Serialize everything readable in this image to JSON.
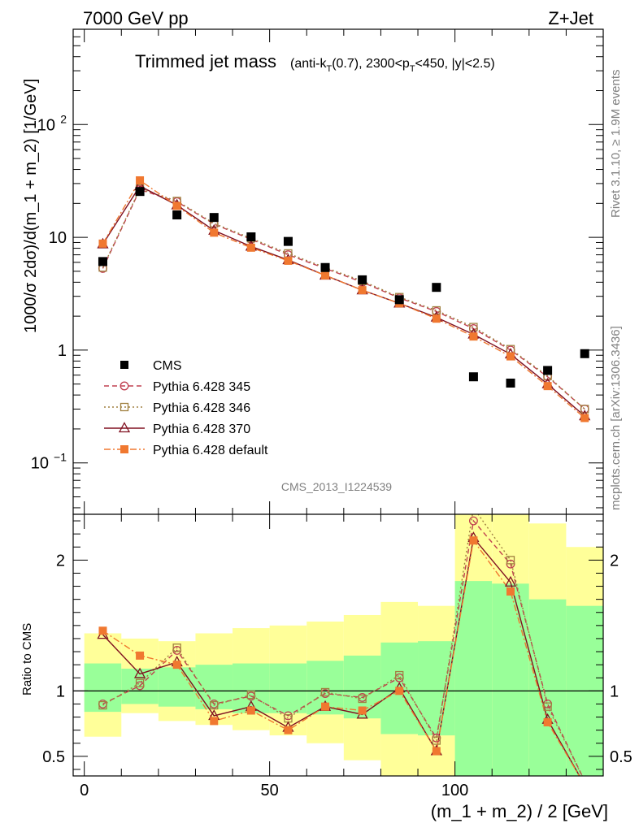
{
  "header": {
    "left": "7000 GeV pp",
    "right": "Z+Jet"
  },
  "title": "Trimmed jet mass",
  "title_detail": "(anti-k_T(0.7), 2300<p_T<450, |y|<2.5)",
  "side_labels": {
    "rivet": "Rivet 3.1.10, ≥ 1.9M events",
    "mcplots": "mcplots.cern.ch [arXiv:1306.3436]"
  },
  "watermark": "CMS_2013_I1224539",
  "chart_data": [
    {
      "type": "scatter",
      "title": "Trimmed jet mass",
      "ylabel": "1000/σ 2dσ)/d(m_1 + m_2) [1/GeV]",
      "yscale": "log",
      "ylim": [
        0.035,
        700
      ],
      "xlim": [
        -3,
        140
      ],
      "yticks": [
        0.1,
        1,
        10,
        100
      ],
      "ytick_labels": [
        "10^-1",
        "1",
        "10",
        "10^2"
      ],
      "x": [
        5,
        15,
        25,
        35,
        45,
        55,
        65,
        75,
        85,
        95,
        105,
        115,
        125,
        135
      ],
      "series": [
        {
          "name": "CMS",
          "color": "#000000",
          "marker": "square",
          "values": [
            6.1,
            25.5,
            15.8,
            15.0,
            10.1,
            9.2,
            5.4,
            4.2,
            2.8,
            3.6,
            0.58,
            0.51,
            0.66,
            0.93
          ]
        },
        {
          "name": "Pythia 6.428 345",
          "color": "#c04050",
          "marker": "circle-open",
          "dash": "6,4",
          "values": [
            5.3,
            26.5,
            20.7,
            13.1,
            9.6,
            7.0,
            5.3,
            4.0,
            2.9,
            2.2,
            1.55,
            1.0,
            0.58,
            0.3
          ]
        },
        {
          "name": "Pythia 6.428 346",
          "color": "#a08040",
          "marker": "square-open",
          "dash": "2,3",
          "values": [
            5.4,
            27.0,
            21.0,
            13.3,
            9.8,
            7.2,
            5.4,
            4.1,
            2.95,
            2.25,
            1.6,
            1.02,
            0.59,
            0.3
          ]
        },
        {
          "name": "Pythia 6.428 370",
          "color": "#801020",
          "marker": "triangle-open",
          "values": [
            8.7,
            28.5,
            19.3,
            11.5,
            8.3,
            6.3,
            4.6,
            3.4,
            2.6,
            1.95,
            1.38,
            0.92,
            0.5,
            0.26
          ]
        },
        {
          "name": "Pythia 6.428 default",
          "color": "#f07830",
          "marker": "square",
          "dash": "8,3,2,3",
          "values": [
            8.8,
            32.0,
            19.0,
            11.0,
            8.1,
            6.2,
            4.6,
            3.4,
            2.6,
            1.9,
            1.32,
            0.88,
            0.48,
            0.25
          ]
        }
      ]
    },
    {
      "type": "line",
      "ylabel": "Ratio to CMS",
      "xlabel": "(m_1 + m_2) / 2 [GeV]",
      "ylim": [
        0.35,
        2.35
      ],
      "xlim": [
        -3,
        140
      ],
      "xticks": [
        0,
        50,
        100
      ],
      "yticks": [
        0.5,
        1,
        2
      ],
      "x": [
        5,
        15,
        25,
        35,
        45,
        55,
        65,
        75,
        85,
        95,
        105,
        115,
        125,
        135
      ],
      "bands": {
        "edges": [
          0,
          10,
          20,
          30,
          40,
          50,
          60,
          70,
          80,
          90,
          100,
          110,
          120,
          130,
          140
        ],
        "yellow_low": [
          0.65,
          0.83,
          0.77,
          0.74,
          0.7,
          0.66,
          0.6,
          0.47,
          0.3,
          0.3,
          0.3,
          0.3,
          0.3,
          0.3
        ],
        "yellow_high": [
          1.44,
          1.4,
          1.38,
          1.44,
          1.48,
          1.5,
          1.53,
          1.58,
          1.68,
          1.65,
          2.35,
          2.35,
          2.28,
          2.1
        ],
        "green_low": [
          0.84,
          0.9,
          0.88,
          0.86,
          0.83,
          0.83,
          0.82,
          0.79,
          0.67,
          0.66,
          0.3,
          0.3,
          0.3,
          0.3
        ],
        "green_high": [
          1.21,
          1.17,
          1.18,
          1.2,
          1.21,
          1.21,
          1.23,
          1.27,
          1.37,
          1.38,
          1.84,
          1.82,
          1.7,
          1.65
        ]
      },
      "series": [
        {
          "name": "Pythia 6.428 345",
          "color": "#c04050",
          "marker": "circle-open",
          "dash": "6,4",
          "values": [
            0.9,
            1.04,
            1.31,
            0.9,
            0.96,
            0.81,
            0.98,
            0.95,
            1.1,
            0.64,
            2.3,
            1.97,
            0.9,
            0.31
          ]
        },
        {
          "name": "Pythia 6.428 346",
          "color": "#a08040",
          "marker": "square-open",
          "dash": "2,3",
          "values": [
            0.89,
            1.06,
            1.33,
            0.89,
            0.97,
            0.79,
            0.99,
            0.94,
            1.12,
            0.62,
            2.4,
            2.0,
            0.88,
            0.31
          ]
        },
        {
          "name": "Pythia 6.428 370",
          "color": "#801020",
          "marker": "triangle-open",
          "values": [
            1.43,
            1.13,
            1.22,
            0.81,
            0.88,
            0.72,
            0.88,
            0.82,
            1.02,
            0.54,
            2.17,
            1.83,
            0.78,
            0.28
          ]
        },
        {
          "name": "Pythia 6.428 default",
          "color": "#f07830",
          "marker": "square",
          "dash": "8,3,2,3",
          "values": [
            1.46,
            1.27,
            1.2,
            0.77,
            0.85,
            0.7,
            0.88,
            0.85,
            1.0,
            0.54,
            2.15,
            1.76,
            0.76,
            0.28
          ]
        }
      ]
    }
  ]
}
